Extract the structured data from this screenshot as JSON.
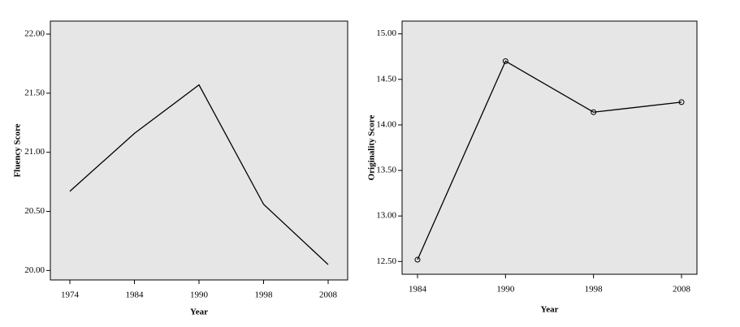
{
  "chart_data": [
    {
      "type": "line",
      "x_label": "Year",
      "y_label": "Fluency Score",
      "categories": [
        "1974",
        "1984",
        "1990",
        "1998",
        "2008"
      ],
      "values": [
        20.67,
        21.16,
        21.57,
        20.56,
        20.05
      ],
      "color": "#000000",
      "markers": false,
      "ylim": [
        19.92,
        22.11
      ],
      "yticks": [
        {
          "value": 20,
          "label": "20.00"
        },
        {
          "value": 20.5,
          "label": "20.50"
        },
        {
          "value": 21,
          "label": "21.00"
        },
        {
          "value": 21.5,
          "label": "21.50"
        },
        {
          "value": 22,
          "label": "22.00"
        }
      ]
    },
    {
      "type": "line",
      "x_label": "Year",
      "y_label": "Originality Score",
      "categories": [
        "1984",
        "1990",
        "1998",
        "2008"
      ],
      "values": [
        12.52,
        14.7,
        14.14,
        14.25
      ],
      "color": "#000000",
      "markers": true,
      "ylim": [
        12.36,
        15.14
      ],
      "yticks": [
        {
          "value": 12.5,
          "label": "12.50"
        },
        {
          "value": 13,
          "label": "13.00"
        },
        {
          "value": 13.5,
          "label": "13.50"
        },
        {
          "value": 14,
          "label": "14.00"
        },
        {
          "value": 14.5,
          "label": "14.50"
        },
        {
          "value": 15,
          "label": "15.00"
        }
      ]
    }
  ]
}
